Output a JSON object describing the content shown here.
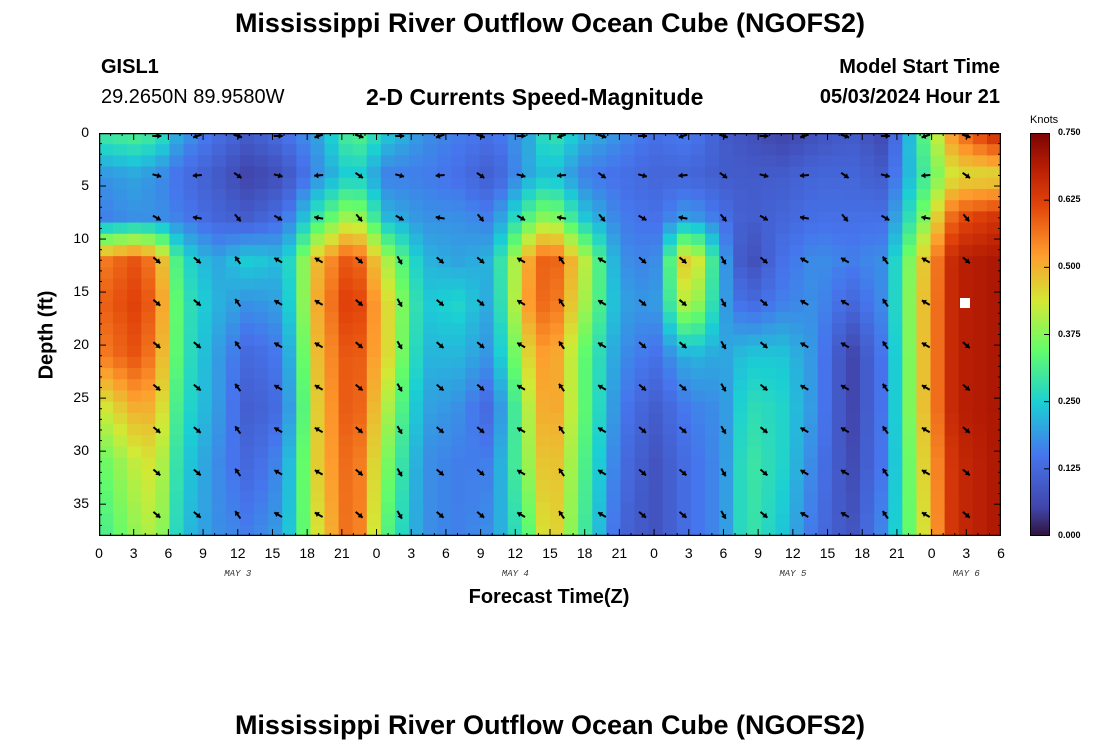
{
  "header": {
    "title_top": "Mississippi River Outflow Ocean Cube (NGOFS2)",
    "station": "GISL1",
    "coords": "29.2650N  89.9580W",
    "subtitle": "2-D Currents Speed-Magnitude",
    "model_label": "Model Start Time",
    "model_time": "05/03/2024 Hour 21",
    "title_bottom": "Mississippi River Outflow Ocean Cube (NGOFS2)"
  },
  "chart_data": {
    "type": "heatmap",
    "title": "2-D Currents Speed-Magnitude",
    "xlabel": "Forecast Time(Z)",
    "ylabel": "Depth (ft)",
    "x_tick_labels": [
      "0",
      "3",
      "6",
      "9",
      "12",
      "15",
      "18",
      "21",
      "0",
      "3",
      "6",
      "9",
      "12",
      "15",
      "18",
      "21",
      "0",
      "3",
      "6",
      "9",
      "12",
      "15",
      "18",
      "21",
      "0",
      "3",
      "6"
    ],
    "x_range_hours": [
      0,
      78
    ],
    "day_labels": [
      {
        "label": "MAY 3",
        "hour": 12
      },
      {
        "label": "MAY 4",
        "hour": 36
      },
      {
        "label": "MAY 5",
        "hour": 60
      },
      {
        "label": "MAY 6",
        "hour": 75
      }
    ],
    "y_ticks": [
      0,
      5,
      10,
      15,
      20,
      25,
      30,
      35
    ],
    "y_range_ft": [
      0,
      38
    ],
    "colorbar": {
      "unit": "Knots",
      "ticks": [
        "0.750",
        "0.625",
        "0.500",
        "0.375",
        "0.250",
        "0.125",
        "0.000"
      ],
      "range": [
        0,
        0.75
      ]
    },
    "speed_columns": [
      {
        "t": 0,
        "v": [
          0.3,
          0.18,
          0.16,
          0.55,
          0.58,
          0.55,
          0.42,
          0.34,
          0.3
        ]
      },
      {
        "t": 3,
        "v": [
          0.32,
          0.2,
          0.18,
          0.6,
          0.62,
          0.6,
          0.5,
          0.42,
          0.38
        ]
      },
      {
        "t": 5,
        "v": [
          0.3,
          0.18,
          0.18,
          0.55,
          0.58,
          0.55,
          0.5,
          0.45,
          0.42
        ]
      },
      {
        "t": 7,
        "v": [
          0.2,
          0.14,
          0.16,
          0.28,
          0.3,
          0.3,
          0.28,
          0.26,
          0.24
        ]
      },
      {
        "t": 10,
        "v": [
          0.14,
          0.1,
          0.12,
          0.2,
          0.22,
          0.2,
          0.2,
          0.18,
          0.18
        ]
      },
      {
        "t": 13,
        "v": [
          0.1,
          0.05,
          0.1,
          0.25,
          0.18,
          0.12,
          0.1,
          0.12,
          0.16
        ]
      },
      {
        "t": 16,
        "v": [
          0.14,
          0.08,
          0.14,
          0.22,
          0.2,
          0.16,
          0.14,
          0.18,
          0.2
        ]
      },
      {
        "t": 19,
        "v": [
          0.2,
          0.18,
          0.3,
          0.5,
          0.52,
          0.5,
          0.48,
          0.48,
          0.45
        ]
      },
      {
        "t": 22,
        "v": [
          0.34,
          0.26,
          0.42,
          0.62,
          0.65,
          0.62,
          0.62,
          0.6,
          0.6
        ]
      },
      {
        "t": 25,
        "v": [
          0.24,
          0.16,
          0.22,
          0.4,
          0.45,
          0.45,
          0.4,
          0.36,
          0.32
        ]
      },
      {
        "t": 28,
        "v": [
          0.18,
          0.16,
          0.18,
          0.22,
          0.24,
          0.22,
          0.2,
          0.18,
          0.18
        ]
      },
      {
        "t": 31,
        "v": [
          0.16,
          0.14,
          0.18,
          0.2,
          0.26,
          0.22,
          0.18,
          0.16,
          0.16
        ]
      },
      {
        "t": 34,
        "v": [
          0.14,
          0.1,
          0.16,
          0.22,
          0.2,
          0.18,
          0.12,
          0.16,
          0.18
        ]
      },
      {
        "t": 37,
        "v": [
          0.2,
          0.2,
          0.32,
          0.5,
          0.52,
          0.45,
          0.4,
          0.38,
          0.32
        ]
      },
      {
        "t": 39,
        "v": [
          0.3,
          0.24,
          0.4,
          0.62,
          0.6,
          0.55,
          0.55,
          0.52,
          0.5
        ]
      },
      {
        "t": 42,
        "v": [
          0.22,
          0.16,
          0.24,
          0.42,
          0.4,
          0.34,
          0.34,
          0.32,
          0.3
        ]
      },
      {
        "t": 45,
        "v": [
          0.18,
          0.14,
          0.16,
          0.18,
          0.2,
          0.18,
          0.16,
          0.14,
          0.12
        ]
      },
      {
        "t": 48,
        "v": [
          0.14,
          0.12,
          0.14,
          0.16,
          0.18,
          0.14,
          0.1,
          0.08,
          0.08
        ]
      },
      {
        "t": 51,
        "v": [
          0.16,
          0.12,
          0.2,
          0.52,
          0.45,
          0.22,
          0.16,
          0.14,
          0.14
        ]
      },
      {
        "t": 54,
        "v": [
          0.1,
          0.1,
          0.14,
          0.2,
          0.2,
          0.2,
          0.18,
          0.18,
          0.18
        ]
      },
      {
        "t": 56,
        "v": [
          0.08,
          0.1,
          0.1,
          0.06,
          0.12,
          0.24,
          0.28,
          0.3,
          0.3
        ]
      },
      {
        "t": 59,
        "v": [
          0.05,
          0.1,
          0.12,
          0.14,
          0.16,
          0.24,
          0.26,
          0.26,
          0.24
        ]
      },
      {
        "t": 62,
        "v": [
          0.08,
          0.12,
          0.14,
          0.18,
          0.18,
          0.18,
          0.18,
          0.16,
          0.14
        ]
      },
      {
        "t": 65,
        "v": [
          0.1,
          0.12,
          0.14,
          0.16,
          0.12,
          0.05,
          0.05,
          0.06,
          0.08
        ]
      },
      {
        "t": 68,
        "v": [
          0.06,
          0.1,
          0.14,
          0.18,
          0.18,
          0.16,
          0.16,
          0.16,
          0.18
        ]
      },
      {
        "t": 71,
        "v": [
          0.3,
          0.28,
          0.34,
          0.45,
          0.46,
          0.46,
          0.46,
          0.44,
          0.42
        ]
      },
      {
        "t": 74,
        "v": [
          0.55,
          0.45,
          0.6,
          0.68,
          0.68,
          0.68,
          0.68,
          0.66,
          0.66
        ]
      },
      {
        "t": 78,
        "v": [
          0.68,
          0.45,
          0.65,
          0.7,
          0.7,
          0.7,
          0.7,
          0.7,
          0.7
        ]
      }
    ],
    "speed_depths_ft": [
      0,
      4,
      8,
      12,
      16,
      21,
      26,
      31,
      38
    ],
    "vector_depths_ft": [
      0,
      4,
      8,
      12,
      16,
      20,
      24,
      28,
      32,
      36
    ],
    "vector_times": [
      5,
      8.5,
      12,
      15.5,
      19,
      22.5,
      26,
      29.5,
      33,
      36.5,
      40,
      43.5,
      47,
      50.5,
      54,
      57.5,
      61,
      64.5,
      68,
      71.5,
      75
    ]
  }
}
